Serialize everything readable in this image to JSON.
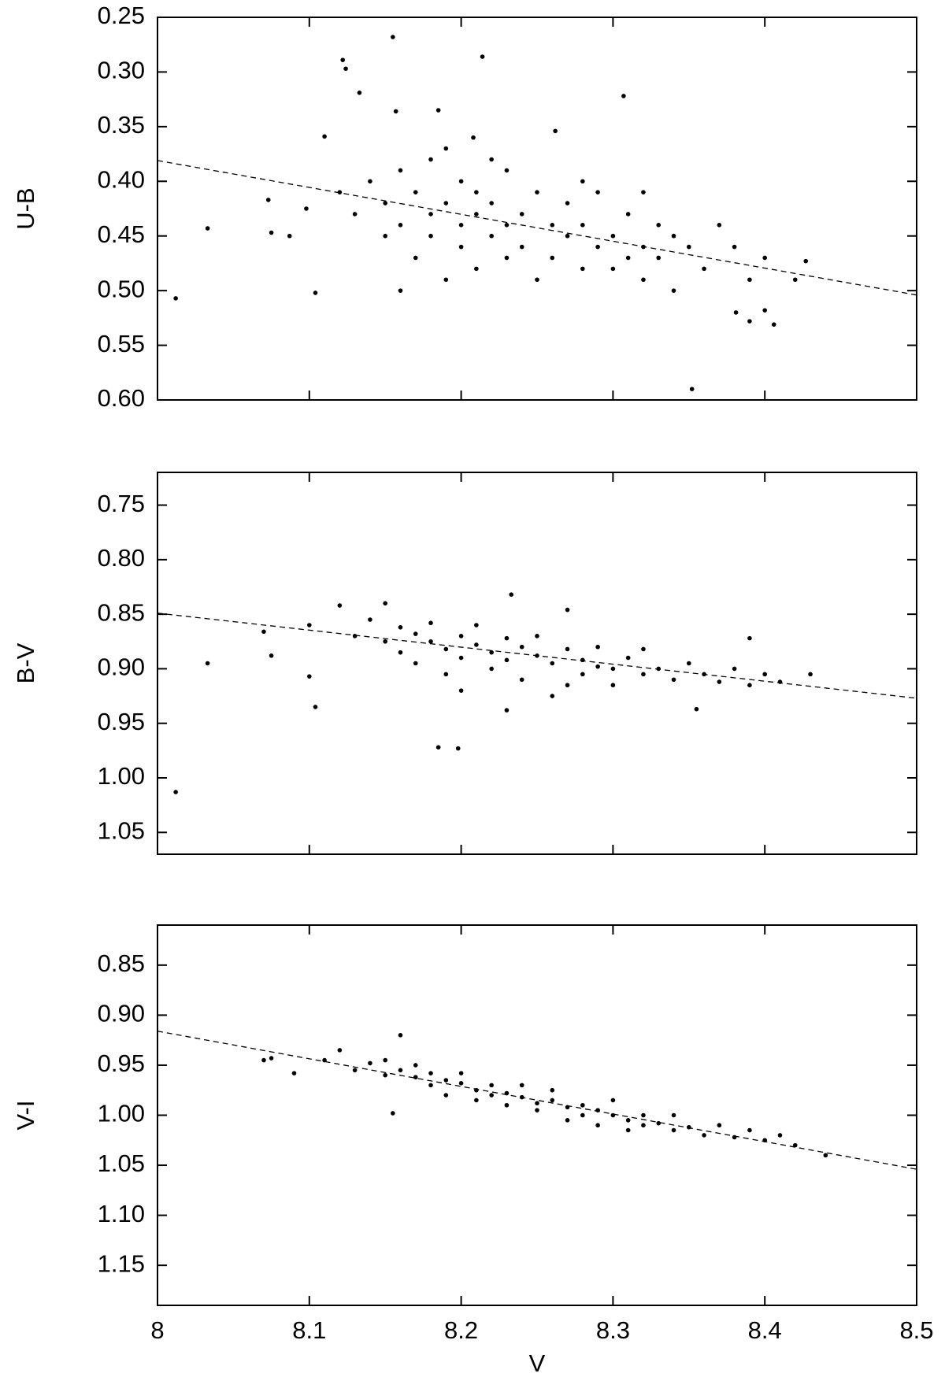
{
  "chart_data": [
    {
      "type": "scatter",
      "ylabel": "U-B",
      "color": "#000000",
      "xlim": [
        8,
        8.5
      ],
      "xticks": [
        8,
        8.1,
        8.2,
        8.3,
        8.4,
        8.5
      ],
      "ylim": [
        0.6,
        0.25
      ],
      "yticks": [
        0.25,
        {
          "value": 0.3,
          "label": "0.30"
        },
        0.35,
        {
          "value": 0.4,
          "label": "0.40"
        },
        0.45,
        {
          "value": 0.5,
          "label": "0.50"
        },
        0.55,
        {
          "value": 0.6,
          "label": "0.60"
        }
      ],
      "x": [
        8.012,
        8.033,
        8.073,
        8.075,
        8.087,
        8.098,
        8.104,
        8.11,
        8.122,
        8.124,
        8.133,
        8.155,
        8.157,
        8.185,
        8.214,
        8.208,
        8.262,
        8.307,
        8.352,
        8.406,
        8.427,
        8.4,
        8.39,
        8.381,
        8.42,
        8.12,
        8.13,
        8.14,
        8.15,
        8.15,
        8.16,
        8.16,
        8.17,
        8.17,
        8.18,
        8.18,
        8.18,
        8.19,
        8.19,
        8.2,
        8.2,
        8.2,
        8.21,
        8.21,
        8.21,
        8.22,
        8.22,
        8.23,
        8.23,
        8.23,
        8.24,
        8.24,
        8.25,
        8.25,
        8.26,
        8.26,
        8.27,
        8.27,
        8.28,
        8.28,
        8.29,
        8.29,
        8.3,
        8.3,
        8.31,
        8.31,
        8.32,
        8.32,
        8.33,
        8.33,
        8.34,
        8.34,
        8.35,
        8.36,
        8.37,
        8.38,
        8.39,
        8.4,
        8.22,
        8.19,
        8.28,
        8.32,
        8.16
      ],
      "values": [
        0.507,
        0.443,
        0.417,
        0.447,
        0.45,
        0.425,
        0.502,
        0.359,
        0.289,
        0.297,
        0.319,
        0.268,
        0.336,
        0.335,
        0.286,
        0.36,
        0.354,
        0.322,
        0.59,
        0.531,
        0.473,
        0.518,
        0.528,
        0.52,
        0.49,
        0.41,
        0.43,
        0.4,
        0.42,
        0.45,
        0.39,
        0.44,
        0.41,
        0.47,
        0.38,
        0.43,
        0.45,
        0.42,
        0.49,
        0.4,
        0.44,
        0.46,
        0.43,
        0.41,
        0.48,
        0.42,
        0.45,
        0.39,
        0.44,
        0.47,
        0.43,
        0.46,
        0.41,
        0.49,
        0.44,
        0.47,
        0.42,
        0.45,
        0.48,
        0.44,
        0.46,
        0.41,
        0.45,
        0.48,
        0.43,
        0.47,
        0.46,
        0.49,
        0.44,
        0.47,
        0.45,
        0.5,
        0.46,
        0.48,
        0.44,
        0.46,
        0.49,
        0.47,
        0.38,
        0.37,
        0.4,
        0.41,
        0.5
      ],
      "fit_x": [
        8,
        8.5
      ],
      "fit_values": [
        0.381,
        0.504
      ]
    },
    {
      "type": "scatter",
      "ylabel": "B-V",
      "color": "#000000",
      "xlim": [
        8,
        8.5
      ],
      "xticks": [
        8,
        8.1,
        8.2,
        8.3,
        8.4,
        8.5
      ],
      "ylim": [
        1.07,
        0.72
      ],
      "yticks": [
        0.75,
        {
          "value": 0.8,
          "label": "0.80"
        },
        0.85,
        {
          "value": 0.9,
          "label": "0.90"
        },
        0.95,
        {
          "value": 1,
          "label": "1.00"
        },
        1.05
      ],
      "x": [
        8.012,
        8.033,
        8.07,
        8.075,
        8.1,
        8.104,
        8.185,
        8.198,
        8.233,
        8.27,
        8.39,
        8.43,
        8.355,
        8.23,
        8.1,
        8.12,
        8.13,
        8.14,
        8.15,
        8.16,
        8.16,
        8.17,
        8.17,
        8.18,
        8.18,
        8.19,
        8.19,
        8.2,
        8.2,
        8.21,
        8.21,
        8.22,
        8.22,
        8.23,
        8.23,
        8.24,
        8.24,
        8.25,
        8.25,
        8.26,
        8.27,
        8.27,
        8.28,
        8.28,
        8.29,
        8.29,
        8.3,
        8.3,
        8.31,
        8.32,
        8.32,
        8.33,
        8.34,
        8.35,
        8.36,
        8.37,
        8.38,
        8.39,
        8.4,
        8.41,
        8.15,
        8.2,
        8.26
      ],
      "values": [
        1.013,
        0.895,
        0.866,
        0.888,
        0.907,
        0.935,
        0.972,
        0.973,
        0.832,
        0.846,
        0.872,
        0.905,
        0.937,
        0.938,
        0.86,
        0.842,
        0.87,
        0.855,
        0.875,
        0.862,
        0.885,
        0.868,
        0.895,
        0.875,
        0.858,
        0.882,
        0.905,
        0.87,
        0.89,
        0.878,
        0.86,
        0.885,
        0.9,
        0.872,
        0.892,
        0.88,
        0.91,
        0.888,
        0.87,
        0.895,
        0.882,
        0.915,
        0.892,
        0.905,
        0.898,
        0.88,
        0.9,
        0.915,
        0.89,
        0.905,
        0.882,
        0.9,
        0.91,
        0.895,
        0.905,
        0.912,
        0.9,
        0.915,
        0.905,
        0.912,
        0.84,
        0.92,
        0.925
      ],
      "fit_x": [
        8,
        8.5
      ],
      "fit_values": [
        0.849,
        0.927
      ]
    },
    {
      "type": "scatter",
      "ylabel": "V-I",
      "xlabel": "V",
      "color": "#000000",
      "xlim": [
        8,
        8.5
      ],
      "xticks": [
        8,
        8.1,
        8.2,
        8.3,
        8.4,
        8.5
      ],
      "ylim": [
        1.19,
        0.81
      ],
      "yticks": [
        0.85,
        {
          "value": 0.9,
          "label": "0.90"
        },
        0.95,
        {
          "value": 1,
          "label": "1.00"
        },
        1.05,
        {
          "value": 1.1,
          "label": "1.10"
        },
        1.15
      ],
      "x": [
        8.07,
        8.075,
        8.09,
        8.16,
        8.155,
        8.44,
        8.11,
        8.12,
        8.13,
        8.14,
        8.15,
        8.15,
        8.16,
        8.17,
        8.17,
        8.18,
        8.18,
        8.19,
        8.19,
        8.2,
        8.2,
        8.21,
        8.21,
        8.22,
        8.22,
        8.23,
        8.23,
        8.24,
        8.24,
        8.25,
        8.25,
        8.26,
        8.26,
        8.27,
        8.27,
        8.28,
        8.28,
        8.29,
        8.29,
        8.3,
        8.3,
        8.31,
        8.31,
        8.32,
        8.32,
        8.33,
        8.34,
        8.34,
        8.35,
        8.36,
        8.37,
        8.38,
        8.39,
        8.4,
        8.41,
        8.42
      ],
      "values": [
        0.945,
        0.943,
        0.958,
        0.92,
        0.998,
        1.04,
        0.945,
        0.935,
        0.955,
        0.948,
        0.96,
        0.945,
        0.955,
        0.962,
        0.95,
        0.97,
        0.958,
        0.965,
        0.98,
        0.968,
        0.958,
        0.975,
        0.985,
        0.97,
        0.98,
        0.978,
        0.99,
        0.982,
        0.97,
        0.988,
        0.995,
        0.985,
        0.975,
        0.992,
        1.005,
        0.99,
        1,
        0.995,
        1.01,
        1,
        0.985,
        1.005,
        1.015,
        1,
        1.01,
        1.008,
        1.015,
        1,
        1.012,
        1.02,
        1.01,
        1.022,
        1.015,
        1.025,
        1.02,
        1.03
      ],
      "fit_x": [
        8,
        8.5
      ],
      "fit_values": [
        0.916,
        1.054
      ]
    }
  ]
}
